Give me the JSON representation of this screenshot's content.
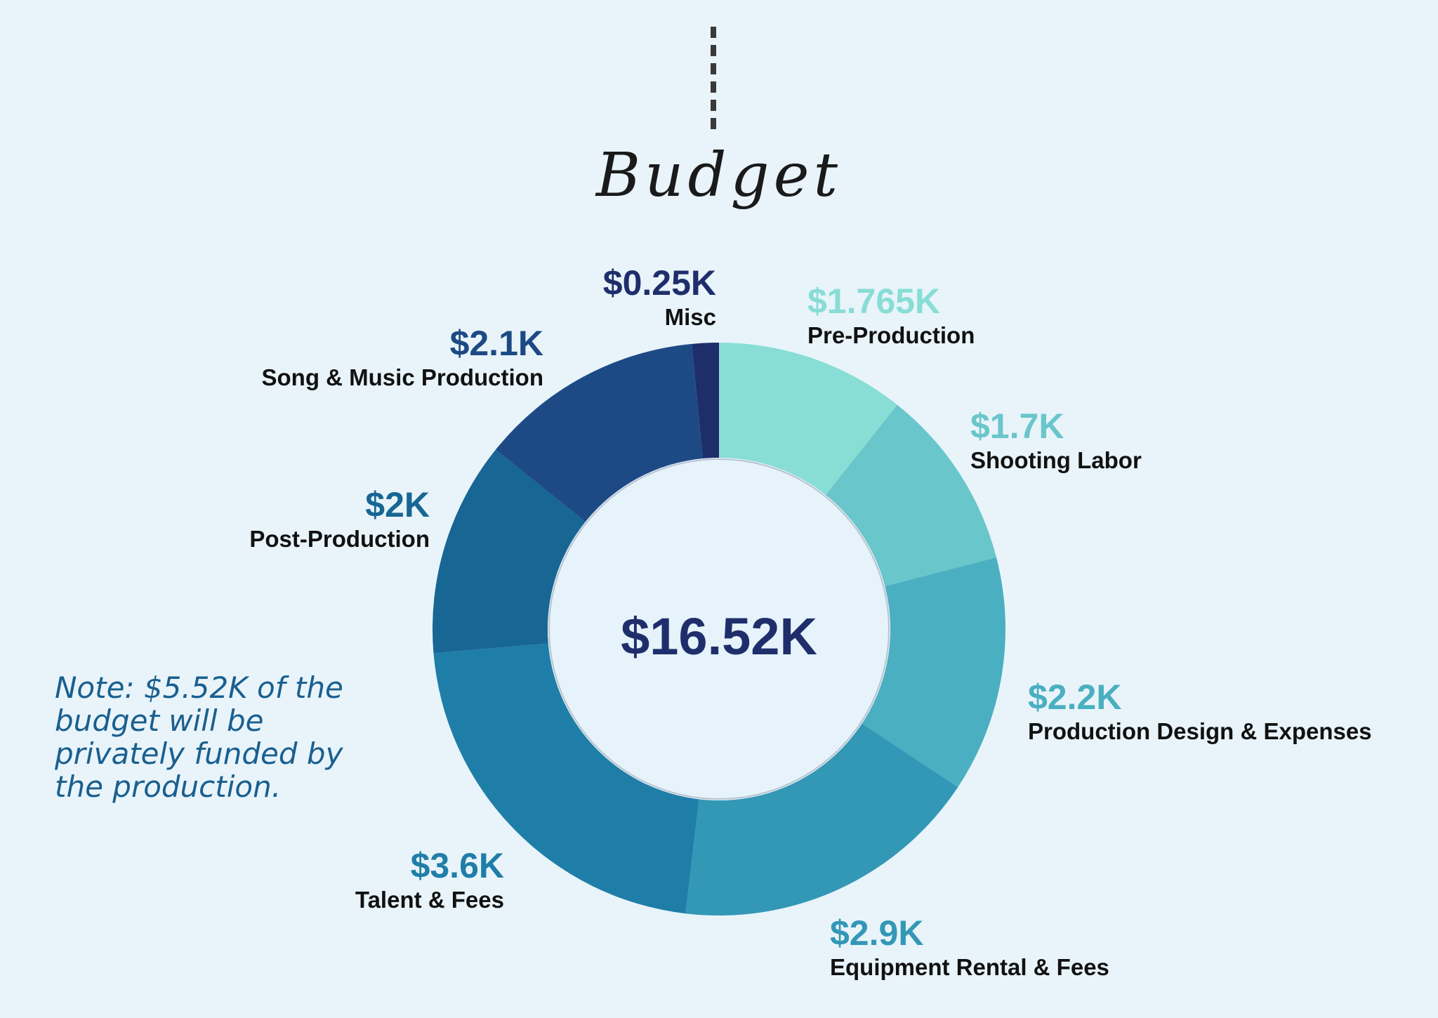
{
  "chart_data": {
    "type": "pie",
    "title": "Budget",
    "center_total": "$16.52K",
    "slices": [
      {
        "label": "Pre-Production",
        "value": 1.765,
        "value_label": "$1.765K",
        "color": "#88ddd5"
      },
      {
        "label": "Shooting Labor",
        "value": 1.7,
        "value_label": "$1.7K",
        "color": "#69c6ca"
      },
      {
        "label": "Production Design & Expenses",
        "value": 2.2,
        "value_label": "$2.2K",
        "color": "#4aafc1"
      },
      {
        "label": "Equipment Rental & Fees",
        "value": 2.9,
        "value_label": "$2.9K",
        "color": "#3397b6"
      },
      {
        "label": "Talent & Fees",
        "value": 3.6,
        "value_label": "$3.6K",
        "color": "#1f7ea8"
      },
      {
        "label": "Post-Production",
        "value": 2.0,
        "value_label": "$2K",
        "color": "#176694"
      },
      {
        "label": "Song & Music Production",
        "value": 2.1,
        "value_label": "$2.1K",
        "color": "#1d4a85"
      },
      {
        "label": "Misc",
        "value": 0.25,
        "value_label": "$0.25K",
        "color": "#1f2e6b"
      }
    ]
  },
  "note": "Note: $5.52K of the budget will be privately funded by the production.",
  "colors": {
    "background": "#e8f4fa",
    "center_fill": "#e6f3fa",
    "center_text": "#1f2e6b",
    "note_text": "#1a5f8f"
  }
}
